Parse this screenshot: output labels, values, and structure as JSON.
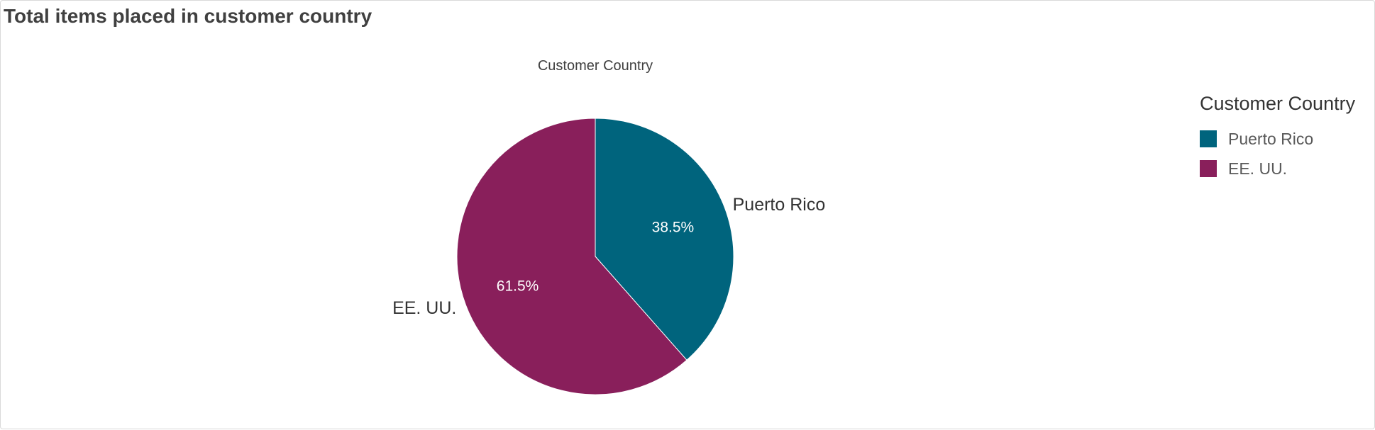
{
  "panel": {
    "title": "Total items placed in customer country"
  },
  "chart_data": {
    "type": "pie",
    "title": "Customer Country",
    "slices": [
      {
        "label": "Puerto Rico",
        "value": 38.5,
        "value_label": "38.5%",
        "color": "#00647d"
      },
      {
        "label": "EE. UU.",
        "value": 61.5,
        "value_label": "61.5%",
        "color": "#891f5b"
      }
    ],
    "legend": {
      "title": "Customer Country",
      "position": "right"
    }
  }
}
